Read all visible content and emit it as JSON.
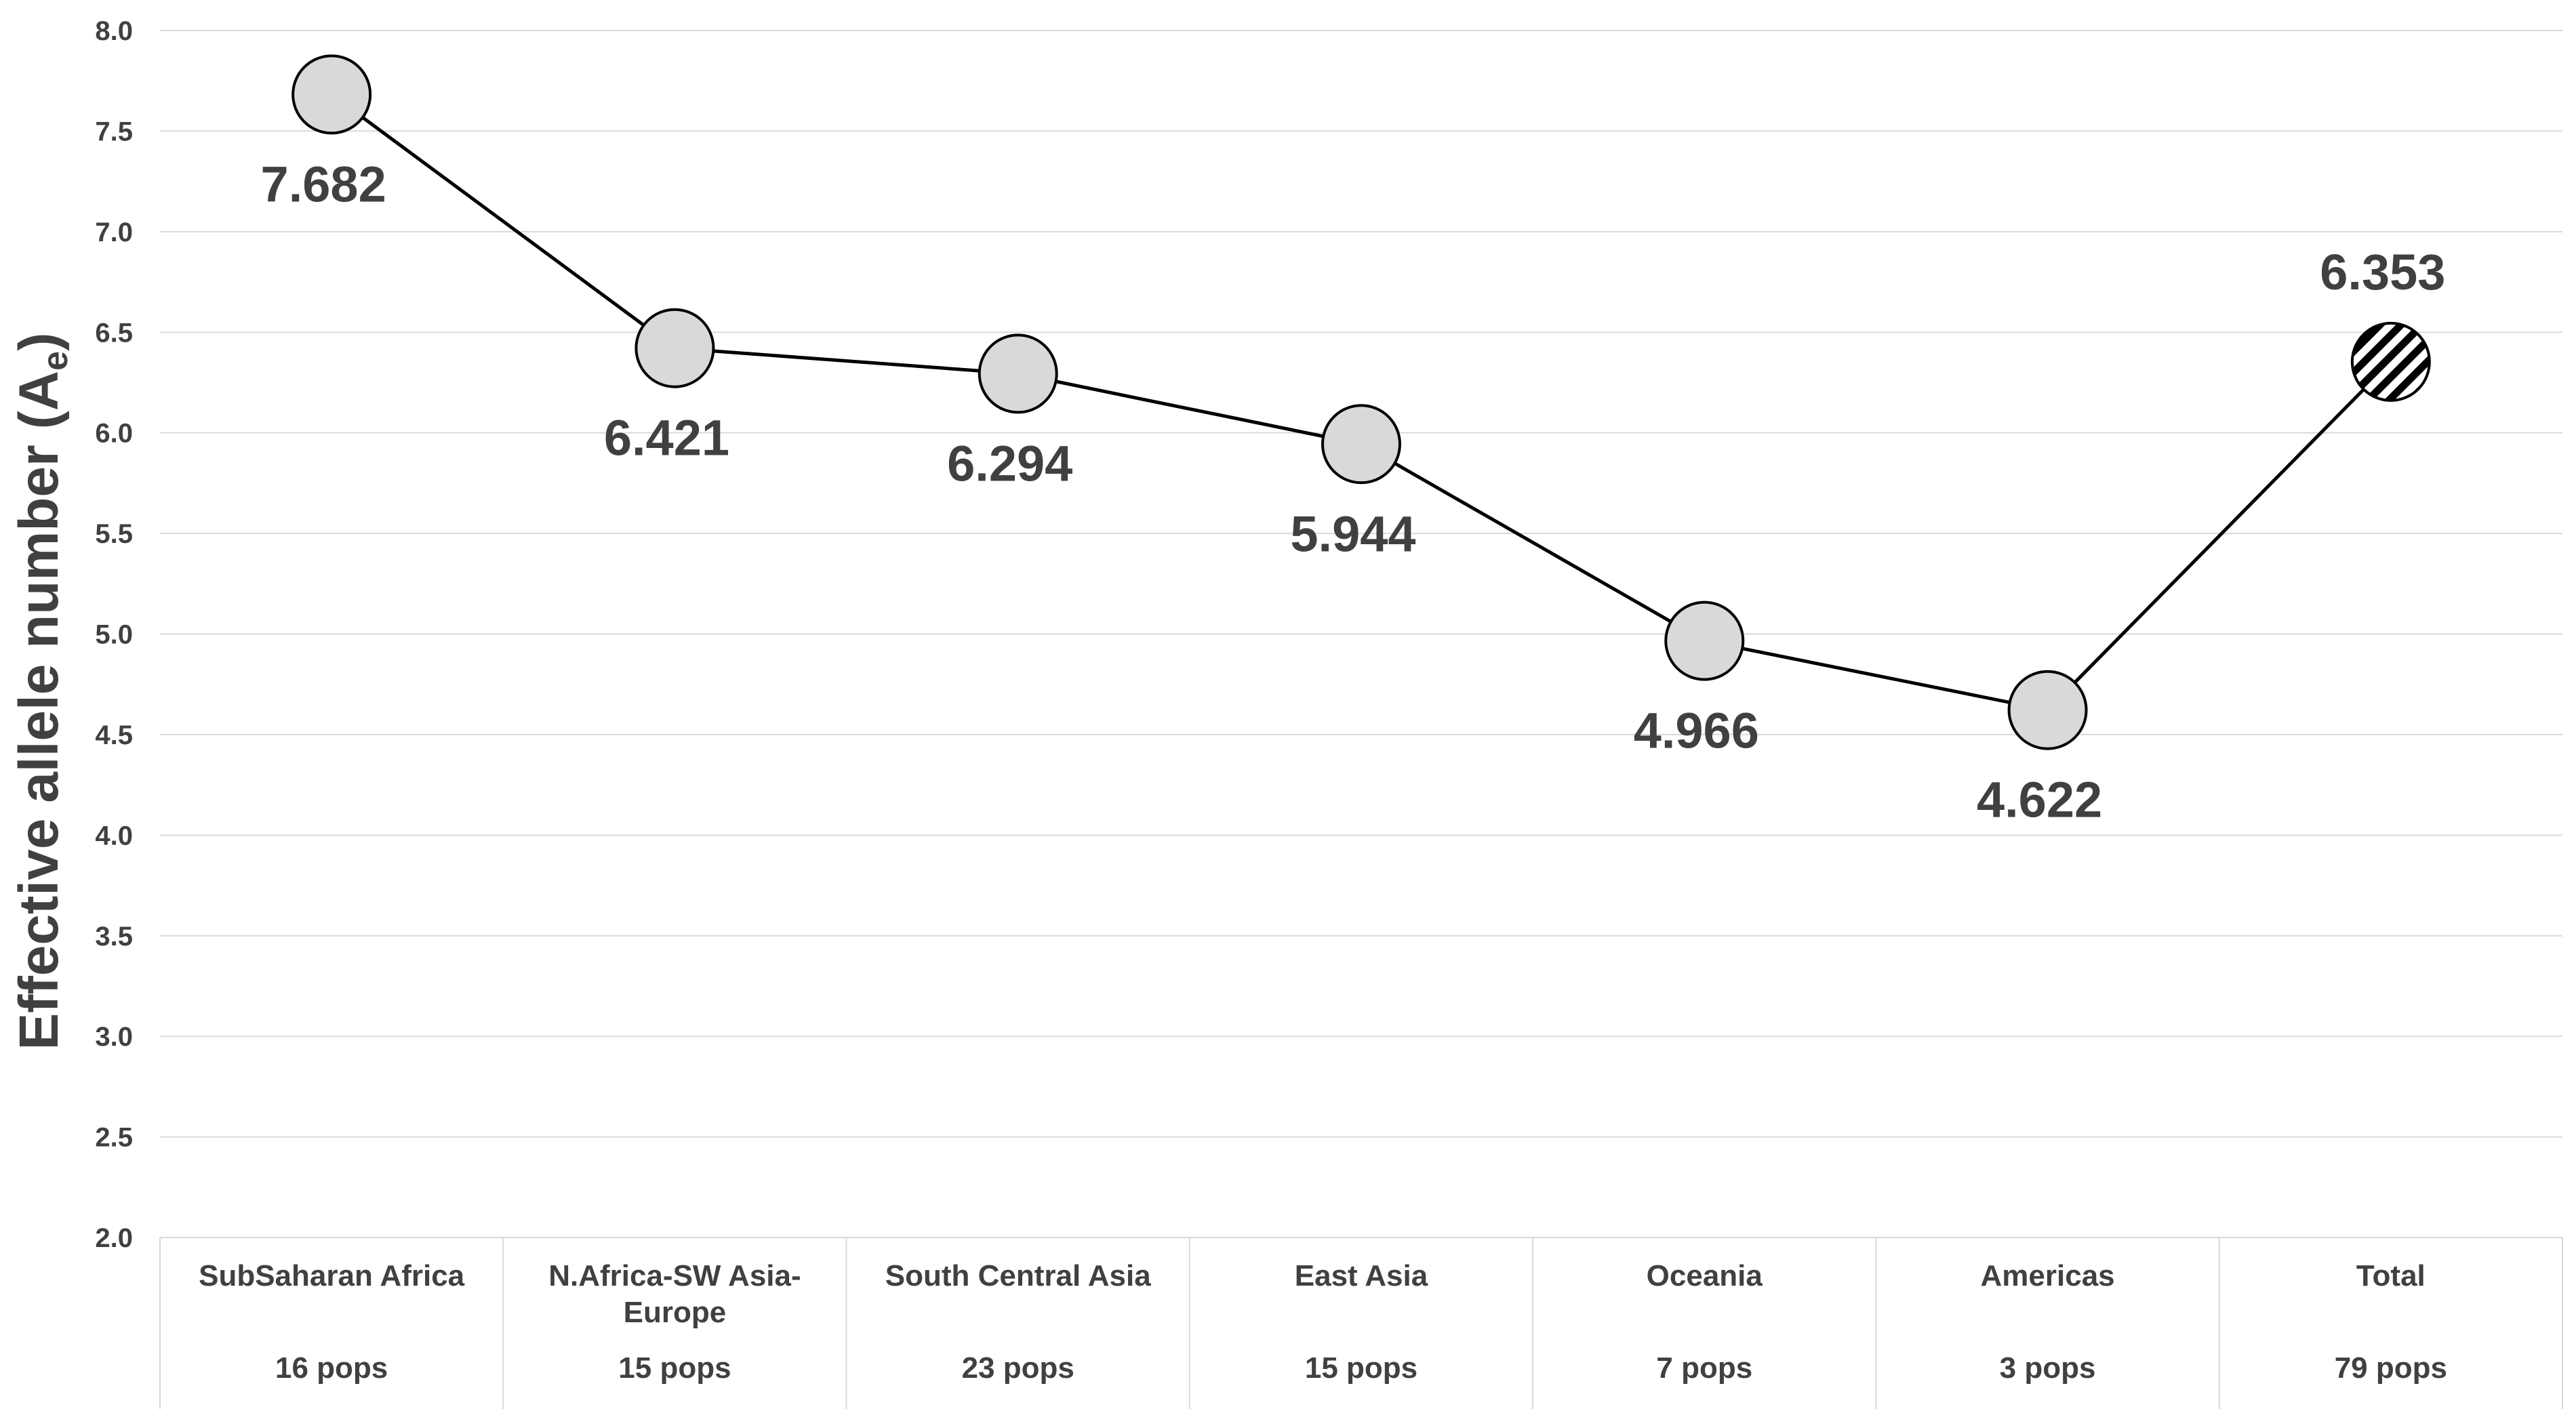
{
  "chart_data": {
    "type": "line",
    "ylabel": "Effective allele number (A",
    "ylabel_sub": "e",
    "ylabel_close": ")",
    "ylim": [
      2.0,
      8.0
    ],
    "yticks": [
      "2.0",
      "2.5",
      "3.0",
      "3.5",
      "4.0",
      "4.5",
      "5.0",
      "5.5",
      "6.0",
      "6.5",
      "7.0",
      "7.5",
      "8.0"
    ],
    "grid": true,
    "categories": [
      [
        "SubSaharan Africa"
      ],
      [
        "N.Africa-SW Asia-",
        "Europe"
      ],
      [
        "South Central Asia"
      ],
      [
        "East Asia"
      ],
      [
        "Oceania"
      ],
      [
        "Americas"
      ],
      [
        "Total"
      ]
    ],
    "counts": [
      "16 pops",
      "15 pops",
      "23 pops",
      "15 pops",
      "7 pops",
      "3 pops",
      "79 pops"
    ],
    "values": [
      7.682,
      6.421,
      6.294,
      5.944,
      4.966,
      4.622,
      6.353
    ],
    "data_labels": [
      "7.682",
      "6.421",
      "6.294",
      "5.944",
      "4.966",
      "4.622",
      "6.353"
    ],
    "label_placement": [
      "below",
      "below",
      "below",
      "below",
      "below",
      "below",
      "above"
    ],
    "marker_styles": [
      "solid",
      "solid",
      "solid",
      "solid",
      "solid",
      "solid",
      "hatched"
    ],
    "colors": {
      "marker_fill": "#d9d9d9",
      "marker_stroke": "#000000",
      "line": "#000000",
      "grid": "#d9d9d9",
      "text": "#404040"
    }
  }
}
